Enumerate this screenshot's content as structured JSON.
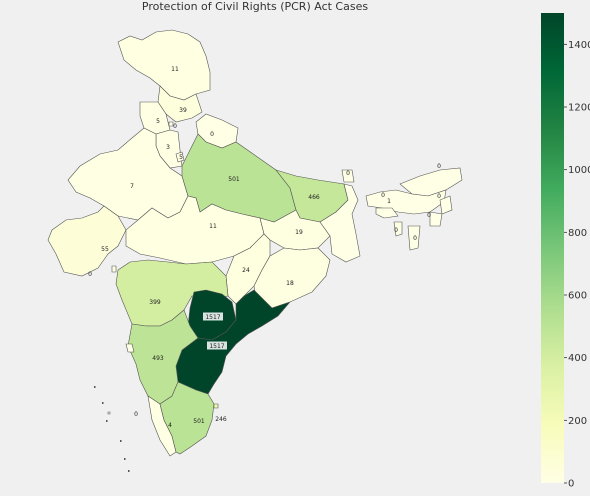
{
  "title": "Protection of Civil Rights (PCR) Act Cases",
  "colorbar": {
    "min": 0,
    "max": 1500,
    "ticks": [
      0,
      200,
      400,
      600,
      800,
      1000,
      1200,
      1400
    ],
    "colors": [
      "#ffffe5",
      "#f7fcb9",
      "#d9f0a3",
      "#addd8e",
      "#78c679",
      "#41ab5d",
      "#238443",
      "#006837",
      "#004529"
    ]
  },
  "chart_data": {
    "type": "choropleth",
    "title": "Protection of Civil Rights (PCR) Act Cases",
    "regions": [
      {
        "id": "jammu-kashmir",
        "value": 11,
        "label": "11"
      },
      {
        "id": "himachal-pradesh",
        "value": 39,
        "label": "39"
      },
      {
        "id": "punjab",
        "value": 5,
        "label": "5"
      },
      {
        "id": "chandigarh",
        "value": 0,
        "label": "0"
      },
      {
        "id": "uttarakhand",
        "value": 0,
        "label": "0"
      },
      {
        "id": "haryana",
        "value": 3,
        "label": "3"
      },
      {
        "id": "delhi",
        "value": 5,
        "label": "5"
      },
      {
        "id": "rajasthan",
        "value": 7,
        "label": "7"
      },
      {
        "id": "uttar-pradesh",
        "value": 501,
        "label": "501"
      },
      {
        "id": "bihar",
        "value": 466,
        "label": "466"
      },
      {
        "id": "sikkim",
        "value": 0,
        "label": "0"
      },
      {
        "id": "arunachal-pradesh",
        "value": 0,
        "label": "0"
      },
      {
        "id": "assam",
        "value": 0,
        "label": "0"
      },
      {
        "id": "meghalaya",
        "value": 1,
        "label": "1"
      },
      {
        "id": "nagaland",
        "value": 0,
        "label": "0"
      },
      {
        "id": "manipur",
        "value": 0,
        "label": "0"
      },
      {
        "id": "tripura",
        "value": 0,
        "label": "0"
      },
      {
        "id": "mizoram",
        "value": 0,
        "label": "0"
      },
      {
        "id": "gujarat",
        "value": 55,
        "label": "55"
      },
      {
        "id": "dadra-nagar-haveli",
        "value": 0,
        "label": "0"
      },
      {
        "id": "madhya-pradesh",
        "value": 11,
        "label": "11"
      },
      {
        "id": "jharkhand",
        "value": 19,
        "label": "19"
      },
      {
        "id": "west-bengal",
        "value": 0,
        "label": ""
      },
      {
        "id": "chhattisgarh",
        "value": 24,
        "label": "24"
      },
      {
        "id": "odisha",
        "value": 18,
        "label": "18"
      },
      {
        "id": "maharashtra",
        "value": 399,
        "label": "399"
      },
      {
        "id": "telangana",
        "value": 1517,
        "label": "1517"
      },
      {
        "id": "andhra-pradesh",
        "value": 1517,
        "label": "1517"
      },
      {
        "id": "karnataka",
        "value": 493,
        "label": "493"
      },
      {
        "id": "goa",
        "value": 0,
        "label": ""
      },
      {
        "id": "lakshadweep",
        "value": 0,
        "label": "0"
      },
      {
        "id": "kerala",
        "value": 4,
        "label": "4"
      },
      {
        "id": "tamil-nadu",
        "value": 501,
        "label": "501"
      },
      {
        "id": "puducherry",
        "value": 246,
        "label": "246"
      }
    ]
  }
}
